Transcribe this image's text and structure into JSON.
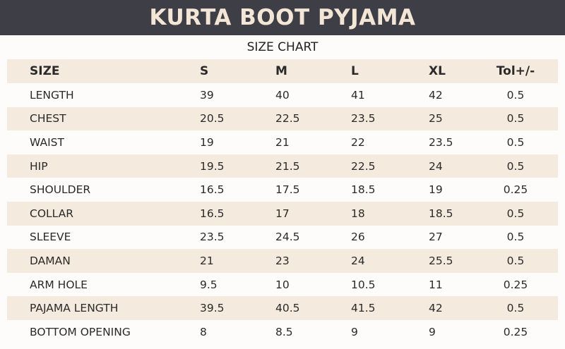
{
  "header": {
    "title": "KURTA BOOT PYJAMA"
  },
  "subtitle": "SIZE CHART",
  "table": {
    "columns": [
      "SIZE",
      "S",
      "M",
      "L",
      "XL",
      "Tol+/-"
    ],
    "rows": [
      [
        "LENGTH",
        "39",
        "40",
        "41",
        "42",
        "0.5"
      ],
      [
        "CHEST",
        "20.5",
        "22.5",
        "23.5",
        "25",
        "0.5"
      ],
      [
        "WAIST",
        "19",
        "21",
        "22",
        "23.5",
        "0.5"
      ],
      [
        "HIP",
        "19.5",
        "21.5",
        "22.5",
        "24",
        "0.5"
      ],
      [
        "SHOULDER",
        "16.5",
        "17.5",
        "18.5",
        "19",
        "0.25"
      ],
      [
        "COLLAR",
        "16.5",
        "17",
        "18",
        "18.5",
        "0.5"
      ],
      [
        "SLEEVE",
        "23.5",
        "24.5",
        "26",
        "27",
        "0.5"
      ],
      [
        "DAMAN",
        "21",
        "23",
        "24",
        "25.5",
        "0.5"
      ],
      [
        "ARM HOLE",
        "9.5",
        "10",
        "10.5",
        "11",
        "0.25"
      ],
      [
        "PAJAMA LENGTH",
        "39.5",
        "40.5",
        "41.5",
        "42",
        "0.5"
      ],
      [
        "BOTTOM OPENING",
        "8",
        "8.5",
        "9",
        "9",
        "0.25"
      ]
    ]
  }
}
